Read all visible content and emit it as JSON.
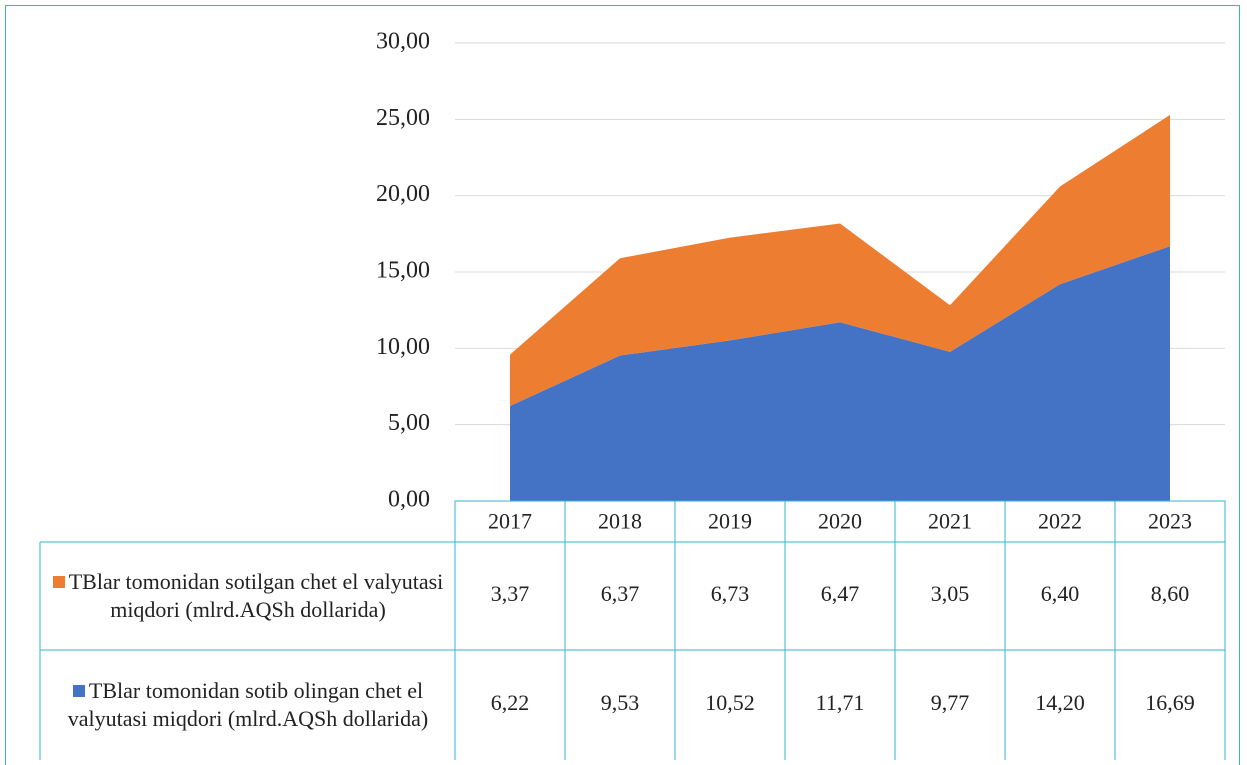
{
  "chart_data": {
    "type": "area",
    "stacked": true,
    "categories": [
      "2017",
      "2018",
      "2019",
      "2020",
      "2021",
      "2022",
      "2023"
    ],
    "series": [
      {
        "name": "TBlar tomonidan sotilgan chet el valyutasi miqdori (mlrd.AQSh dollarida)",
        "color": "#ed7d31",
        "values": [
          3.37,
          6.37,
          6.73,
          6.47,
          3.05,
          6.4,
          8.6
        ],
        "value_labels": [
          "3,37",
          "6,37",
          "6,73",
          "6,47",
          "3,05",
          "6,40",
          "8,60"
        ]
      },
      {
        "name": "TBlar tomonidan sotib olingan chet el valyutasi miqdori (mlrd.AQSh dollarida)",
        "color": "#4472c4",
        "values": [
          6.22,
          9.53,
          10.52,
          11.71,
          9.77,
          14.2,
          16.69
        ],
        "value_labels": [
          "6,22",
          "9,53",
          "10,52",
          "11,71",
          "9,77",
          "14,20",
          "16,69"
        ]
      }
    ],
    "ylim": [
      0,
      30
    ],
    "yticks": [
      {
        "value": 0,
        "label": "0,00"
      },
      {
        "value": 5,
        "label": "5,00"
      },
      {
        "value": 10,
        "label": "10,00"
      },
      {
        "value": 15,
        "label": "15,00"
      },
      {
        "value": 20,
        "label": "20,00"
      },
      {
        "value": 25,
        "label": "25,00"
      },
      {
        "value": 30,
        "label": "30,00"
      }
    ],
    "grid": true,
    "data_table": true
  }
}
